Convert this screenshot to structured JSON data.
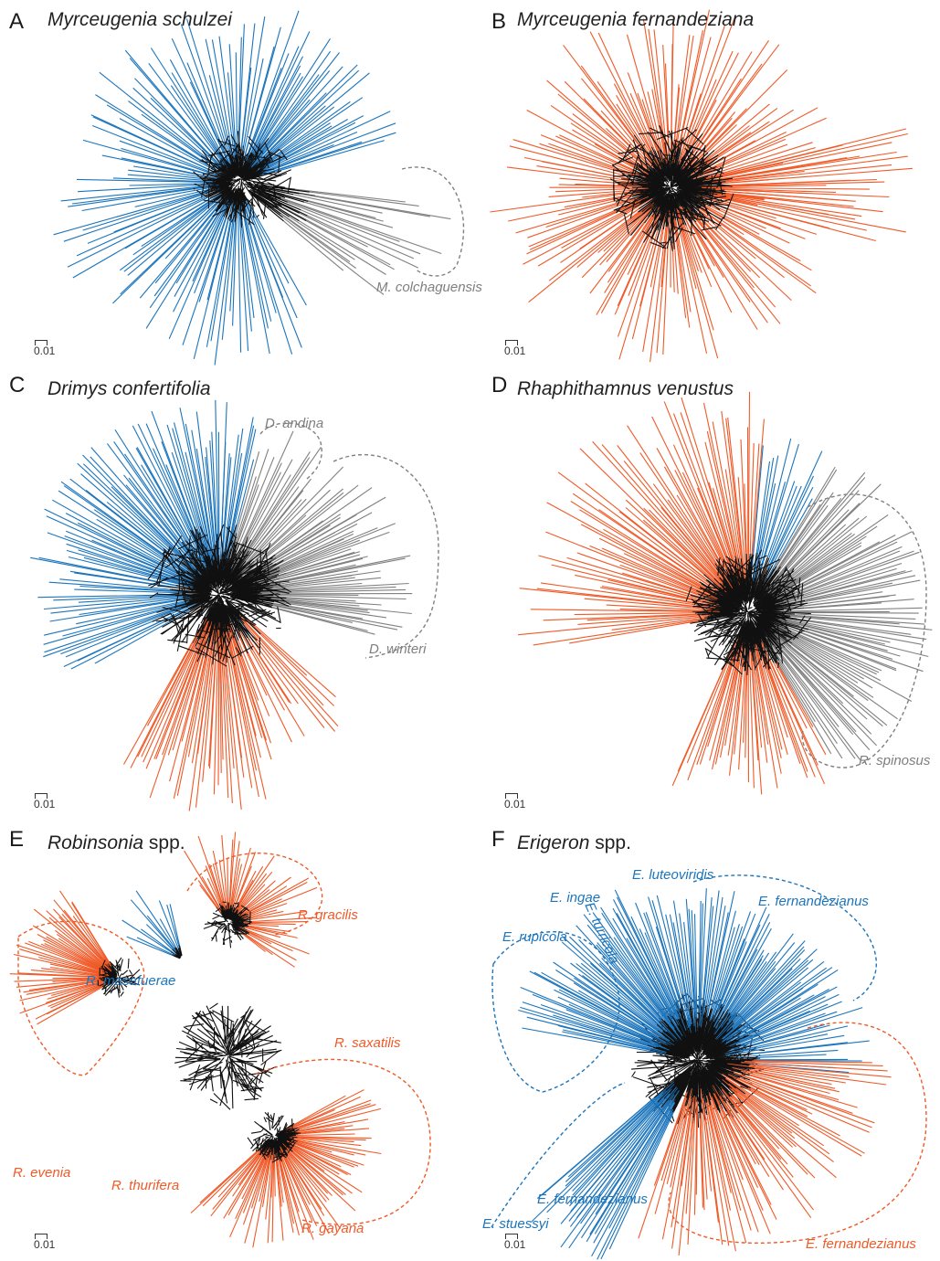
{
  "colors": {
    "blue": "#1c75bc",
    "orange": "#ef5a28",
    "grey": "#808080",
    "core": "#111111"
  },
  "scale_label": "0.01",
  "panels": [
    {
      "letter": "A",
      "title_italic": "Myrceugenia schulzei",
      "title_plain": "",
      "labels": [
        {
          "text": "M. colchaguensis",
          "color": "grey"
        }
      ]
    },
    {
      "letter": "B",
      "title_italic": "Myrceugenia fernandeziana",
      "title_plain": "",
      "labels": []
    },
    {
      "letter": "C",
      "title_italic": "Drimys confertifolia",
      "title_plain": "",
      "labels": [
        {
          "text": "D. andina",
          "color": "grey"
        },
        {
          "text": "D. winteri",
          "color": "grey"
        }
      ]
    },
    {
      "letter": "D",
      "title_italic": "Rhaphithamnus venustus",
      "title_plain": "",
      "labels": [
        {
          "text": "R. spinosus",
          "color": "grey"
        }
      ]
    },
    {
      "letter": "E",
      "title_italic": "Robinsonia",
      "title_plain": " spp.",
      "labels": [
        {
          "text": "R. gracilis",
          "color": "orange"
        },
        {
          "text": "R. masafuerae",
          "color": "blue"
        },
        {
          "text": "R. saxatilis",
          "color": "orange"
        },
        {
          "text": "R. evenia",
          "color": "orange"
        },
        {
          "text": "R. thurifera",
          "color": "orange"
        },
        {
          "text": "R. gayana",
          "color": "orange"
        }
      ]
    },
    {
      "letter": "F",
      "title_italic": "Erigeron",
      "title_plain": " spp.",
      "labels": [
        {
          "text": "E. turricola",
          "color": "blue"
        },
        {
          "text": "E. luteoviridis",
          "color": "blue"
        },
        {
          "text": "E. ingae",
          "color": "blue"
        },
        {
          "text": "E. fernandezianus",
          "color": "blue"
        },
        {
          "text": "E. rupicola",
          "color": "blue"
        },
        {
          "text": "E. fernandezianus",
          "color": "blue"
        },
        {
          "text": "E. stuessyi",
          "color": "blue"
        },
        {
          "text": "E. fernandezianus",
          "color": "orange"
        }
      ]
    }
  ]
}
